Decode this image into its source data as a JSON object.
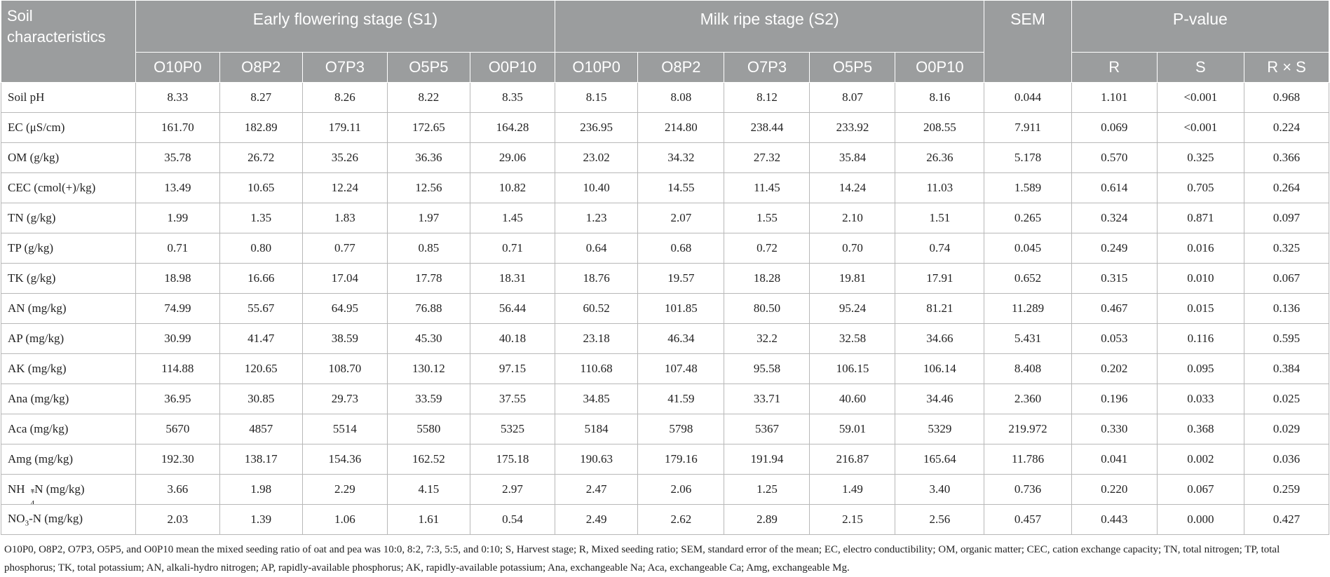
{
  "header": {
    "soil_characteristics": "Soil characteristics",
    "group_s1": "Early flowering stage (S1)",
    "group_s2": "Milk ripe stage (S2)",
    "sem": "SEM",
    "pvalue": "P-value",
    "treatments": [
      "O10P0",
      "O8P2",
      "O7P3",
      "O5P5",
      "O0P10",
      "O10P0",
      "O8P2",
      "O7P3",
      "O5P5",
      "O0P10"
    ],
    "p_cols": [
      "R",
      "S",
      "R × S"
    ]
  },
  "rows": [
    {
      "label": "Soil pH",
      "values": [
        "8.33",
        "8.27",
        "8.26",
        "8.22",
        "8.35",
        "8.15",
        "8.08",
        "8.12",
        "8.07",
        "8.16",
        "0.044",
        "1.101",
        "<0.001",
        "0.968"
      ]
    },
    {
      "label": "EC (μS/cm)",
      "values": [
        "161.70",
        "182.89",
        "179.11",
        "172.65",
        "164.28",
        "236.95",
        "214.80",
        "238.44",
        "233.92",
        "208.55",
        "7.911",
        "0.069",
        "<0.001",
        "0.224"
      ]
    },
    {
      "label": "OM (g/kg)",
      "values": [
        "35.78",
        "26.72",
        "35.26",
        "36.36",
        "29.06",
        "23.02",
        "34.32",
        "27.32",
        "35.84",
        "26.36",
        "5.178",
        "0.570",
        "0.325",
        "0.366"
      ]
    },
    {
      "label": "CEC (cmol(+)/kg)",
      "values": [
        "13.49",
        "10.65",
        "12.24",
        "12.56",
        "10.82",
        "10.40",
        "14.55",
        "11.45",
        "14.24",
        "11.03",
        "1.589",
        "0.614",
        "0.705",
        "0.264"
      ]
    },
    {
      "label": "TN (g/kg)",
      "values": [
        "1.99",
        "1.35",
        "1.83",
        "1.97",
        "1.45",
        "1.23",
        "2.07",
        "1.55",
        "2.10",
        "1.51",
        "0.265",
        "0.324",
        "0.871",
        "0.097"
      ]
    },
    {
      "label": "TP (g/kg)",
      "values": [
        "0.71",
        "0.80",
        "0.77",
        "0.85",
        "0.71",
        "0.64",
        "0.68",
        "0.72",
        "0.70",
        "0.74",
        "0.045",
        "0.249",
        "0.016",
        "0.325"
      ]
    },
    {
      "label": "TK (g/kg)",
      "values": [
        "18.98",
        "16.66",
        "17.04",
        "17.78",
        "18.31",
        "18.76",
        "19.57",
        "18.28",
        "19.81",
        "17.91",
        "0.652",
        "0.315",
        "0.010",
        "0.067"
      ]
    },
    {
      "label": "AN (mg/kg)",
      "values": [
        "74.99",
        "55.67",
        "64.95",
        "76.88",
        "56.44",
        "60.52",
        "101.85",
        "80.50",
        "95.24",
        "81.21",
        "11.289",
        "0.467",
        "0.015",
        "0.136"
      ]
    },
    {
      "label": "AP (mg/kg)",
      "values": [
        "30.99",
        "41.47",
        "38.59",
        "45.30",
        "40.18",
        "23.18",
        "46.34",
        "32.2",
        "32.58",
        "34.66",
        "5.431",
        "0.053",
        "0.116",
        "0.595"
      ]
    },
    {
      "label": "AK (mg/kg)",
      "values": [
        "114.88",
        "120.65",
        "108.70",
        "130.12",
        "97.15",
        "110.68",
        "107.48",
        "95.58",
        "106.15",
        "106.14",
        "8.408",
        "0.202",
        "0.095",
        "0.384"
      ]
    },
    {
      "label": "Ana (mg/kg)",
      "values": [
        "36.95",
        "30.85",
        "29.73",
        "33.59",
        "37.55",
        "34.85",
        "41.59",
        "33.71",
        "40.60",
        "34.46",
        "2.360",
        "0.196",
        "0.033",
        "0.025"
      ]
    },
    {
      "label": "Aca (mg/kg)",
      "values": [
        "5670",
        "4857",
        "5514",
        "5580",
        "5325",
        "5184",
        "5798",
        "5367",
        "59.01",
        "5329",
        "219.972",
        "0.330",
        "0.368",
        "0.029"
      ]
    },
    {
      "label": "Amg (mg/kg)",
      "values": [
        "192.30",
        "138.17",
        "154.36",
        "162.52",
        "175.18",
        "190.63",
        "179.16",
        "191.94",
        "216.87",
        "165.64",
        "11.786",
        "0.041",
        "0.002",
        "0.036"
      ]
    },
    {
      "label_parts": {
        "base": "NH",
        "sub": "4",
        "sup": "+",
        "rest": "-N (mg/kg)"
      },
      "values": [
        "3.66",
        "1.98",
        "2.29",
        "4.15",
        "2.97",
        "2.47",
        "2.06",
        "1.25",
        "1.49",
        "3.40",
        "0.736",
        "0.220",
        "0.067",
        "0.259"
      ]
    },
    {
      "label_parts": {
        "base": "NO",
        "sub": "3",
        "rest": "-N (mg/kg)"
      },
      "values": [
        "2.03",
        "1.39",
        "1.06",
        "1.61",
        "0.54",
        "2.49",
        "2.62",
        "2.89",
        "2.15",
        "2.56",
        "0.457",
        "0.443",
        "0.000",
        "0.427"
      ]
    }
  ],
  "footnote": "O10P0, O8P2, O7P3, O5P5, and O0P10 mean the mixed seeding ratio of oat and pea was 10:0, 8:2, 7:3, 5:5, and 0:10; S, Harvest stage; R, Mixed seeding ratio; SEM, standard error of the mean; EC, electro conductibility; OM, organic matter; CEC, cation exchange capacity; TN, total nitrogen; TP, total phosphorus; TK, total potassium; AN, alkali-hydro nitrogen; AP, rapidly-available phosphorus; AK, rapidly-available potassium; Ana, exchangeable Na; Aca, exchangeable Ca; Amg, exchangeable Mg."
}
